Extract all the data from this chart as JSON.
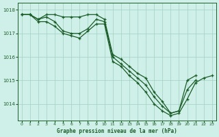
{
  "title": "Graphe pression niveau de la mer (hPa)",
  "background_color": "#cff0e8",
  "plot_bg_color": "#cff0e8",
  "grid_color": "#a0d0c0",
  "line_color": "#1a5c28",
  "xlim": [
    -0.5,
    23.5
  ],
  "ylim": [
    1013.3,
    1018.3
  ],
  "yticks": [
    1014,
    1015,
    1016,
    1017,
    1018
  ],
  "xticks": [
    0,
    1,
    2,
    3,
    4,
    5,
    6,
    7,
    8,
    9,
    10,
    11,
    12,
    13,
    14,
    15,
    16,
    17,
    18,
    19,
    20,
    21,
    22,
    23
  ],
  "s1_x": [
    0,
    1,
    2,
    3,
    4,
    5,
    6,
    7,
    8,
    9,
    10,
    11,
    12,
    13,
    14,
    15,
    16,
    17,
    18,
    19,
    20,
    21
  ],
  "s1_y": [
    1017.8,
    1017.8,
    1017.6,
    1017.8,
    1017.8,
    1017.7,
    1017.7,
    1017.7,
    1017.8,
    1017.8,
    1017.6,
    1016.1,
    1015.9,
    1015.6,
    1015.3,
    1015.1,
    1014.5,
    1014.1,
    1013.6,
    1013.7,
    1015.0,
    1015.2
  ],
  "s2_x": [
    0,
    1,
    2,
    3,
    4,
    5,
    6,
    7,
    8,
    9,
    10,
    11,
    12,
    13,
    14,
    15,
    16,
    17,
    18,
    19,
    20,
    21,
    22,
    23
  ],
  "s2_y": [
    1017.8,
    1017.8,
    1017.5,
    1017.5,
    1017.3,
    1017.0,
    1016.9,
    1016.8,
    1017.1,
    1017.4,
    1017.4,
    1015.8,
    1015.6,
    1015.2,
    1014.9,
    1014.5,
    1014.0,
    1013.7,
    1013.5,
    1013.6,
    1014.2,
    1014.9,
    1015.1,
    1015.2
  ],
  "s3_x": [
    0,
    1,
    2,
    3,
    4,
    5,
    6,
    7,
    8,
    9,
    10,
    11,
    12,
    13,
    14,
    15,
    16,
    17,
    18,
    19,
    20,
    21
  ],
  "s3_y": [
    1017.8,
    1017.8,
    1017.6,
    1017.7,
    1017.5,
    1017.1,
    1017.0,
    1017.0,
    1017.2,
    1017.6,
    1017.5,
    1016.0,
    1015.7,
    1015.4,
    1015.1,
    1014.8,
    1014.3,
    1013.9,
    1013.6,
    1013.7,
    1014.6,
    1015.0
  ]
}
